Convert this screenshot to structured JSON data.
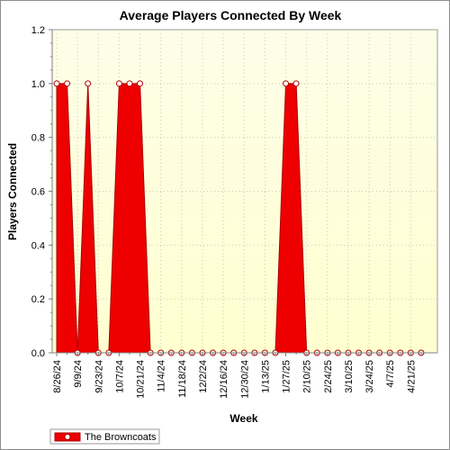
{
  "chart_data": {
    "type": "area",
    "title": "Average Players Connected By Week",
    "xlabel": "Week",
    "ylabel": "Players Connected",
    "ylim": [
      0,
      1.2
    ],
    "yticks": [
      "0.0",
      "0.2",
      "0.4",
      "0.6",
      "0.8",
      "1.0",
      "1.2"
    ],
    "grid": true,
    "legend_position": "bottom-left",
    "x_tick_labels": [
      "8/26/24",
      "9/9/24",
      "9/23/24",
      "10/7/24",
      "10/21/24",
      "11/4/24",
      "11/18/24",
      "12/2/24",
      "12/16/24",
      "12/30/24",
      "1/13/25",
      "1/27/25",
      "2/10/25",
      "2/24/25",
      "3/10/25",
      "3/24/25",
      "4/7/25",
      "4/21/25"
    ],
    "x": [
      "8/26/24",
      "9/2/24",
      "9/9/24",
      "9/16/24",
      "9/23/24",
      "9/30/24",
      "10/7/24",
      "10/14/24",
      "10/21/24",
      "10/28/24",
      "11/4/24",
      "11/11/24",
      "11/18/24",
      "11/25/24",
      "12/2/24",
      "12/9/24",
      "12/16/24",
      "12/23/24",
      "12/30/24",
      "1/6/25",
      "1/13/25",
      "1/20/25",
      "1/27/25",
      "2/3/25",
      "2/10/25",
      "2/17/25",
      "2/24/25",
      "3/3/25",
      "3/10/25",
      "3/17/25",
      "3/24/25",
      "3/31/25",
      "4/7/25",
      "4/14/25",
      "4/21/25",
      "4/28/25"
    ],
    "series": [
      {
        "name": "The Browncoats",
        "color": "#ee0000",
        "values": [
          1,
          1,
          0,
          1,
          0,
          0,
          1,
          1,
          1,
          0,
          0,
          0,
          0,
          0,
          0,
          0,
          0,
          0,
          0,
          0,
          0,
          0,
          1,
          1,
          0,
          0,
          0,
          0,
          0,
          0,
          0,
          0,
          0,
          0,
          0,
          0
        ]
      }
    ]
  },
  "colors": {
    "plot_background_top": "#fefee8",
    "plot_background_bottom": "#ffffd0",
    "series_fill": "#ee0000",
    "series_stroke": "#aa0000",
    "grid": "#c8c8c8"
  }
}
